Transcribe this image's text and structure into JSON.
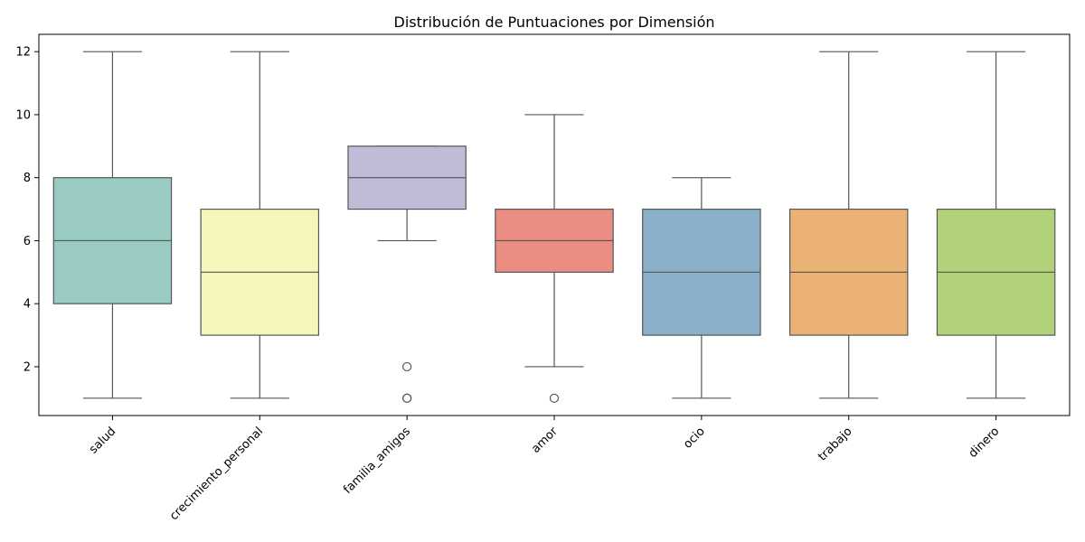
{
  "chart_data": {
    "type": "box",
    "title": "Distribución de Puntuaciones por Dimensión",
    "xlabel": "",
    "ylabel": "",
    "ylim": [
      0.45,
      12.55
    ],
    "yticks": [
      2,
      4,
      6,
      8,
      10,
      12
    ],
    "grid": false,
    "categories": [
      "salud",
      "crecimiento_personal",
      "familia_amigos",
      "amor",
      "ocio",
      "trabajo",
      "dinero"
    ],
    "boxes": [
      {
        "category": "salud",
        "whisker_low": 1,
        "q1": 4,
        "median": 6,
        "q3": 8,
        "whisker_high": 12,
        "outliers": [],
        "color": "#99cbc3"
      },
      {
        "category": "crecimiento_personal",
        "whisker_low": 1,
        "q1": 3,
        "median": 5,
        "q3": 7,
        "whisker_high": 12,
        "outliers": [],
        "color": "#f6f6bb"
      },
      {
        "category": "familia_amigos",
        "whisker_low": 6,
        "q1": 7,
        "median": 8,
        "q3": 9,
        "whisker_high": 9,
        "outliers": [
          2,
          1,
          1
        ],
        "color": "#c0bcd7"
      },
      {
        "category": "amor",
        "whisker_low": 2,
        "q1": 5,
        "median": 6,
        "q3": 7,
        "whisker_high": 10,
        "outliers": [
          1
        ],
        "color": "#ea8e83"
      },
      {
        "category": "ocio",
        "whisker_low": 1,
        "q1": 3,
        "median": 5,
        "q3": 7,
        "whisker_high": 8,
        "outliers": [],
        "color": "#8aafc9"
      },
      {
        "category": "trabajo",
        "whisker_low": 1,
        "q1": 3,
        "median": 5,
        "q3": 7,
        "whisker_high": 12,
        "outliers": [],
        "color": "#eab275"
      },
      {
        "category": "dinero",
        "whisker_low": 1,
        "q1": 3,
        "median": 5,
        "q3": 7,
        "whisker_high": 12,
        "outliers": [],
        "color": "#b1d279"
      }
    ]
  }
}
